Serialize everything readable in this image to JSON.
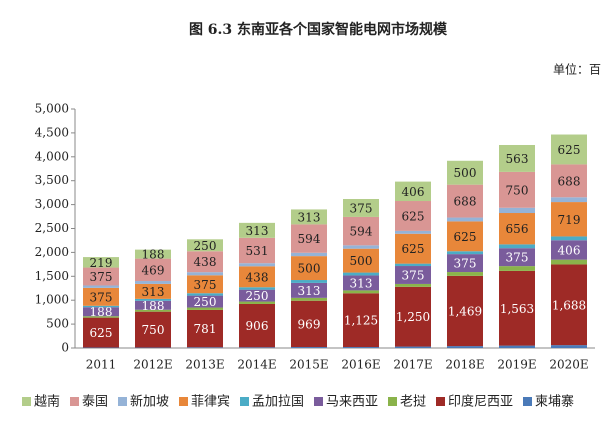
{
  "chart_data": {
    "type": "stacked_bar",
    "title": "图 6.3  东南亚各个国家智能电网市场规模",
    "unit_label": "单位：百",
    "categories": [
      "2011",
      "2012E",
      "2013E",
      "2014E",
      "2015E",
      "2016E",
      "2017E",
      "2018E",
      "2019E",
      "2020E"
    ],
    "series": [
      {
        "name": "柬埔寨",
        "color": "#4a7ab8",
        "values": [
          10,
          10,
          15,
          15,
          20,
          20,
          30,
          40,
          50,
          60
        ]
      },
      {
        "name": "印度尼西亚",
        "color": "#9e2a26",
        "values": [
          625,
          750,
          781,
          906,
          969,
          1125,
          1250,
          1469,
          1563,
          1688
        ],
        "value_labels": [
          "625",
          "750",
          "781",
          "906",
          "969",
          "1,125",
          "1,250",
          "1,469",
          "1,563",
          "1,688"
        ]
      },
      {
        "name": "老挝",
        "color": "#8ab34a",
        "values": [
          30,
          40,
          50,
          50,
          60,
          60,
          60,
          80,
          100,
          100
        ]
      },
      {
        "name": "马来西亚",
        "color": "#7a5c9c",
        "values": [
          188,
          188,
          250,
          250,
          313,
          313,
          375,
          375,
          375,
          406
        ],
        "value_labels": [
          "188",
          "188",
          "250",
          "250",
          "313",
          "313",
          "375",
          "375",
          "375",
          "406"
        ]
      },
      {
        "name": "孟加拉国",
        "color": "#4bacc6",
        "values": [
          30,
          40,
          50,
          50,
          60,
          60,
          50,
          60,
          80,
          80
        ]
      },
      {
        "name": "菲律宾",
        "color": "#e8873a",
        "values": [
          375,
          313,
          375,
          438,
          500,
          500,
          625,
          625,
          656,
          719
        ],
        "value_labels": [
          "375",
          "313",
          "375",
          "438",
          "500",
          "500",
          "625",
          "625",
          "656",
          "719"
        ]
      },
      {
        "name": "新加坡",
        "color": "#95b3d7",
        "values": [
          50,
          60,
          65,
          65,
          70,
          70,
          60,
          80,
          110,
          100
        ]
      },
      {
        "name": "泰国",
        "color": "#d99694",
        "values": [
          375,
          469,
          438,
          531,
          594,
          594,
          625,
          688,
          750,
          688
        ],
        "value_labels": [
          "375",
          "469",
          "438",
          "531",
          "594",
          "594",
          "625",
          "688",
          "750",
          "688"
        ]
      },
      {
        "name": "越南",
        "color": "#b3cd8a",
        "values": [
          219,
          188,
          250,
          313,
          313,
          375,
          406,
          500,
          563,
          625
        ],
        "value_labels": [
          "219",
          "188",
          "250",
          "313",
          "313",
          "375",
          "406",
          "500",
          "563",
          "625"
        ]
      }
    ],
    "legend_order": [
      8,
      7,
      6,
      5,
      4,
      3,
      2,
      1,
      0
    ],
    "ylim": [
      0,
      5000
    ],
    "yticks": [
      0,
      500,
      {
        "value": 1000,
        "label": "1,000"
      },
      {
        "value": 1500,
        "label": "1,500"
      },
      {
        "value": 2000,
        "label": "2,000"
      },
      {
        "value": 2500,
        "label": "2,500"
      },
      {
        "value": 3000,
        "label": "3,000"
      },
      {
        "value": 3500,
        "label": "3,500"
      },
      {
        "value": 4000,
        "label": "4,000"
      },
      {
        "value": 4500,
        "label": "4,500"
      },
      {
        "value": 5000,
        "label": "5,000"
      }
    ],
    "legend": "bottom"
  }
}
